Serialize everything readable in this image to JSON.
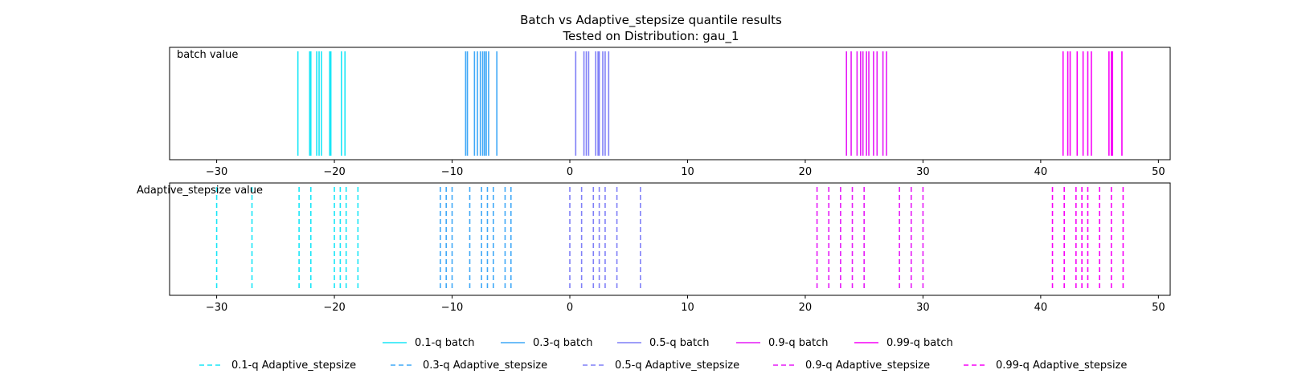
{
  "chart_data": {
    "type": "event_lines",
    "title_line1": "Batch vs Adaptive_stepsize quantile results",
    "title_line2": "Tested on Distribution: gau_1",
    "xlim": [
      -34,
      51
    ],
    "xticks": [
      -30,
      -20,
      -10,
      0,
      10,
      20,
      30,
      40,
      50
    ],
    "panels": [
      {
        "label": "batch value",
        "style": "solid",
        "series": [
          {
            "name": "0.1-q batch",
            "color": "#19e6f7",
            "values": [
              -23.1,
              -22.1,
              -22.0,
              -21.5,
              -21.3,
              -21.1,
              -20.4,
              -20.3,
              -19.4,
              -19.1
            ]
          },
          {
            "name": "0.3-q batch",
            "color": "#3fa8f7",
            "values": [
              -8.85,
              -8.7,
              -8.1,
              -7.85,
              -7.6,
              -7.4,
              -7.25,
              -7.1,
              -6.9,
              -6.2
            ]
          },
          {
            "name": "0.5-q batch",
            "color": "#7f7ff7",
            "values": [
              0.5,
              1.2,
              1.4,
              1.6,
              2.2,
              2.4,
              2.5,
              2.8,
              3.0,
              3.3
            ]
          },
          {
            "name": "0.9-q batch",
            "color": "#e61af7",
            "values": [
              23.5,
              23.9,
              24.4,
              24.7,
              24.9,
              25.2,
              25.4,
              25.8,
              26.1,
              26.6,
              26.9
            ]
          },
          {
            "name": "0.99-q batch",
            "color": "#f700f7",
            "values": [
              41.9,
              42.3,
              42.5,
              43.1,
              43.6,
              44.0,
              44.3,
              45.8,
              46.0,
              46.1,
              46.9
            ]
          }
        ]
      },
      {
        "label": "Adaptive_stepsize value",
        "style": "dashed",
        "series": [
          {
            "name": "0.1-q Adaptive_stepsize",
            "color": "#19e6f7",
            "values": [
              -30,
              -27,
              -23,
              -22,
              -20,
              -19.5,
              -19,
              -18
            ]
          },
          {
            "name": "0.3-q Adaptive_stepsize",
            "color": "#3fa8f7",
            "values": [
              -11,
              -10.5,
              -10,
              -8.5,
              -7.5,
              -7,
              -6.5,
              -5.5,
              -5
            ]
          },
          {
            "name": "0.5-q Adaptive_stepsize",
            "color": "#7f7ff7",
            "values": [
              0,
              1,
              2,
              2.5,
              3,
              4,
              6
            ]
          },
          {
            "name": "0.9-q Adaptive_stepsize",
            "color": "#e61af7",
            "values": [
              21,
              22,
              23,
              24,
              25,
              28,
              29,
              30
            ]
          },
          {
            "name": "0.99-q Adaptive_stepsize",
            "color": "#f700f7",
            "values": [
              41,
              42,
              43,
              43.5,
              44,
              45,
              46,
              47
            ]
          }
        ]
      }
    ],
    "legend_placement": "bottom-center, two rows"
  }
}
